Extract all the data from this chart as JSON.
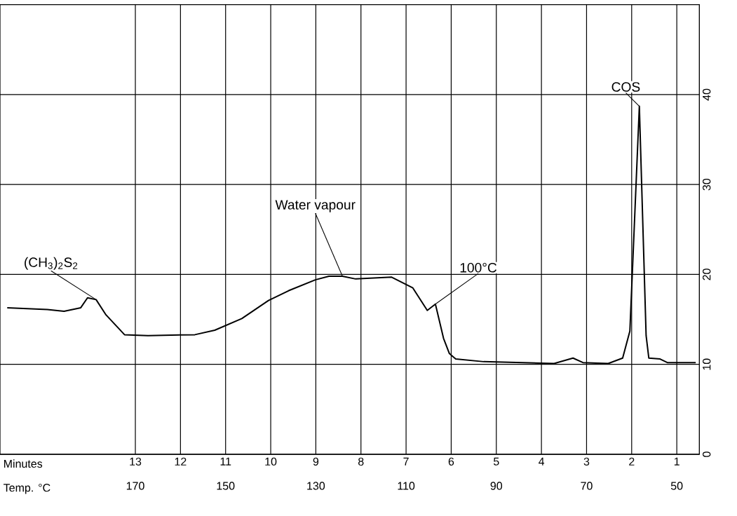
{
  "chart_data": {
    "type": "line",
    "xlabel": "Minutes",
    "x2label": "Temp. °C",
    "x": [
      15.84,
      14.95,
      14.58,
      14.21,
      14.06,
      13.87,
      13.65,
      13.24,
      12.72,
      11.68,
      11.24,
      10.64,
      10.05,
      9.6,
      9.01,
      8.71,
      8.41,
      8.12,
      7.32,
      6.85,
      6.53,
      6.35,
      6.17,
      6.04,
      5.9,
      5.28,
      3.72,
      3.3,
      3.08,
      2.52,
      2.2,
      2.04,
      1.83,
      1.68,
      1.62,
      1.37,
      1.21,
      0.58
    ],
    "values": [
      16.3,
      16.1,
      15.9,
      16.3,
      17.4,
      17.2,
      15.5,
      13.3,
      13.2,
      13.3,
      13.8,
      15.1,
      17.1,
      18.2,
      19.4,
      19.8,
      19.8,
      19.5,
      19.7,
      18.5,
      16.0,
      16.7,
      12.9,
      11.2,
      10.6,
      10.3,
      10.1,
      10.7,
      10.2,
      10.1,
      10.7,
      13.7,
      38.7,
      13.2,
      10.7,
      10.6,
      10.2,
      10.2
    ],
    "color": "#000000",
    "xlim": [
      16,
      0.5
    ],
    "xticks": [
      13,
      12,
      11,
      10,
      9,
      8,
      7,
      6,
      5,
      4,
      3,
      2,
      1
    ],
    "x2lim": [
      200,
      45
    ],
    "x2ticks": [
      170,
      150,
      130,
      110,
      90,
      70,
      50
    ],
    "ylim": [
      0,
      50
    ],
    "yticks": [
      0,
      10,
      20,
      30,
      40
    ],
    "grid": true,
    "marker": "none",
    "annotations": [
      {
        "text": "(CH$_{3}$)$_{2}$S$_{2}$",
        "x": 13.87,
        "y": 17.2
      },
      {
        "text": "Water vapour",
        "x": 8.41,
        "y": 19.8
      },
      {
        "text": "100°C",
        "x": 6.35,
        "y": 16.7
      },
      {
        "text": "COS",
        "x": 1.83,
        "y": 38.7
      }
    ]
  }
}
